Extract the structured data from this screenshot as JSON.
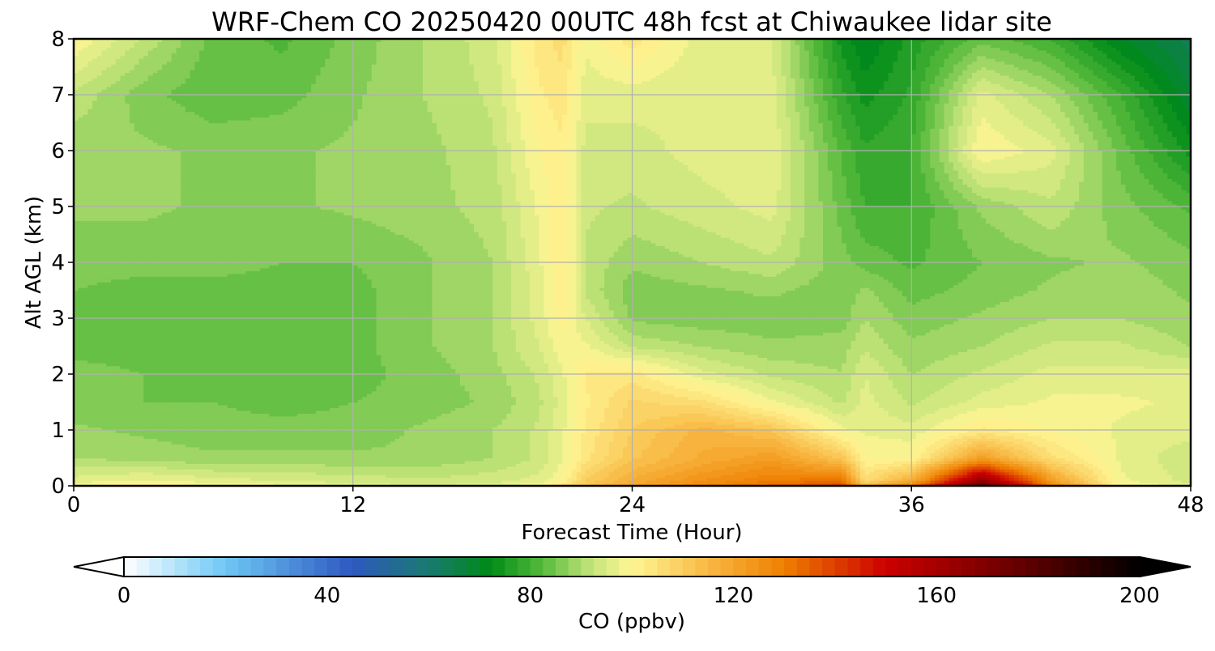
{
  "chart_data": {
    "type": "heatmap",
    "title": "WRF-Chem CO  20250420 00UTC 48h fcst at Chiwaukee lidar site",
    "xlabel": "Forecast Time (Hour)",
    "ylabel": "Alt AGL (km)",
    "xlim": [
      0,
      48
    ],
    "ylim": [
      0,
      8
    ],
    "x_ticks": [
      0,
      12,
      24,
      36,
      48
    ],
    "y_ticks": [
      0,
      1,
      2,
      3,
      4,
      5,
      6,
      7,
      8
    ],
    "grid": true,
    "x": [
      0,
      3,
      6,
      9,
      12,
      15,
      18,
      20,
      21,
      22,
      24,
      27,
      30,
      33,
      34,
      36,
      39,
      42,
      45,
      48
    ],
    "y": [
      0,
      0.1,
      0.5,
      1,
      1.5,
      2,
      2.5,
      3,
      3.5,
      4,
      5,
      6,
      7,
      8
    ],
    "z": [
      [
        100,
        102,
        100,
        98,
        96,
        95,
        96,
        100,
        106,
        112,
        120,
        128,
        134,
        140,
        118,
        130,
        182,
        130,
        100,
        96
      ],
      [
        96,
        98,
        96,
        95,
        94,
        93,
        94,
        96,
        100,
        110,
        118,
        125,
        130,
        132,
        106,
        118,
        165,
        122,
        98,
        94
      ],
      [
        90,
        89,
        88,
        88,
        88,
        88,
        90,
        93,
        97,
        104,
        112,
        118,
        122,
        112,
        100,
        100,
        122,
        106,
        97,
        93
      ],
      [
        88,
        87,
        86,
        86,
        86,
        88,
        90,
        93,
        97,
        103,
        110,
        116,
        112,
        98,
        97,
        96,
        103,
        100,
        97,
        96
      ],
      [
        86,
        85,
        85,
        84,
        85,
        86,
        88,
        92,
        96,
        102,
        108,
        106,
        98,
        92,
        96,
        92,
        96,
        98,
        98,
        97
      ],
      [
        86,
        85,
        84,
        84,
        84,
        86,
        89,
        93,
        97,
        103,
        104,
        96,
        92,
        90,
        95,
        90,
        93,
        96,
        96,
        96
      ],
      [
        84,
        84,
        83,
        84,
        84,
        87,
        90,
        95,
        99,
        98,
        92,
        90,
        88,
        89,
        92,
        88,
        90,
        93,
        93,
        90
      ],
      [
        84,
        83,
        83,
        83,
        84,
        87,
        90,
        96,
        101,
        95,
        87,
        86,
        86,
        86,
        90,
        86,
        88,
        90,
        90,
        88
      ],
      [
        85,
        84,
        84,
        84,
        84,
        87,
        90,
        96,
        103,
        92,
        86,
        87,
        88,
        86,
        88,
        84,
        86,
        88,
        89,
        87
      ],
      [
        86,
        86,
        86,
        85,
        85,
        87,
        90,
        97,
        103,
        92,
        88,
        90,
        92,
        86,
        84,
        82,
        85,
        87,
        88,
        86
      ],
      [
        88,
        88,
        87,
        87,
        88,
        89,
        91,
        98,
        102,
        93,
        92,
        94,
        96,
        84,
        80,
        80,
        88,
        92,
        86,
        82
      ],
      [
        88,
        88,
        87,
        87,
        88,
        89,
        92,
        100,
        102,
        94,
        94,
        96,
        97,
        82,
        78,
        80,
        100,
        96,
        84,
        74
      ],
      [
        92,
        86,
        83,
        84,
        87,
        90,
        93,
        102,
        104,
        96,
        96,
        95,
        96,
        78,
        74,
        78,
        96,
        90,
        80,
        68
      ],
      [
        100,
        92,
        84,
        82,
        86,
        90,
        94,
        104,
        106,
        98,
        104,
        96,
        95,
        74,
        70,
        76,
        84,
        80,
        70,
        64
      ]
    ],
    "colorbar": {
      "label": "CO  (ppbv)",
      "min": 0,
      "max": 200,
      "ticks": [
        0,
        40,
        80,
        120,
        160,
        200
      ],
      "extend": "both",
      "stops": [
        {
          "v": 0,
          "c": "#ffffff"
        },
        {
          "v": 20,
          "c": "#6ec8f5"
        },
        {
          "v": 45,
          "c": "#2e58c0"
        },
        {
          "v": 60,
          "c": "#1a7a70"
        },
        {
          "v": 72,
          "c": "#008a18"
        },
        {
          "v": 82,
          "c": "#52b83a"
        },
        {
          "v": 92,
          "c": "#c4e47a"
        },
        {
          "v": 100,
          "c": "#fff694"
        },
        {
          "v": 115,
          "c": "#f8b843"
        },
        {
          "v": 130,
          "c": "#ef7f00"
        },
        {
          "v": 150,
          "c": "#cc0000"
        },
        {
          "v": 175,
          "c": "#6a0000"
        },
        {
          "v": 200,
          "c": "#000000"
        }
      ]
    }
  }
}
